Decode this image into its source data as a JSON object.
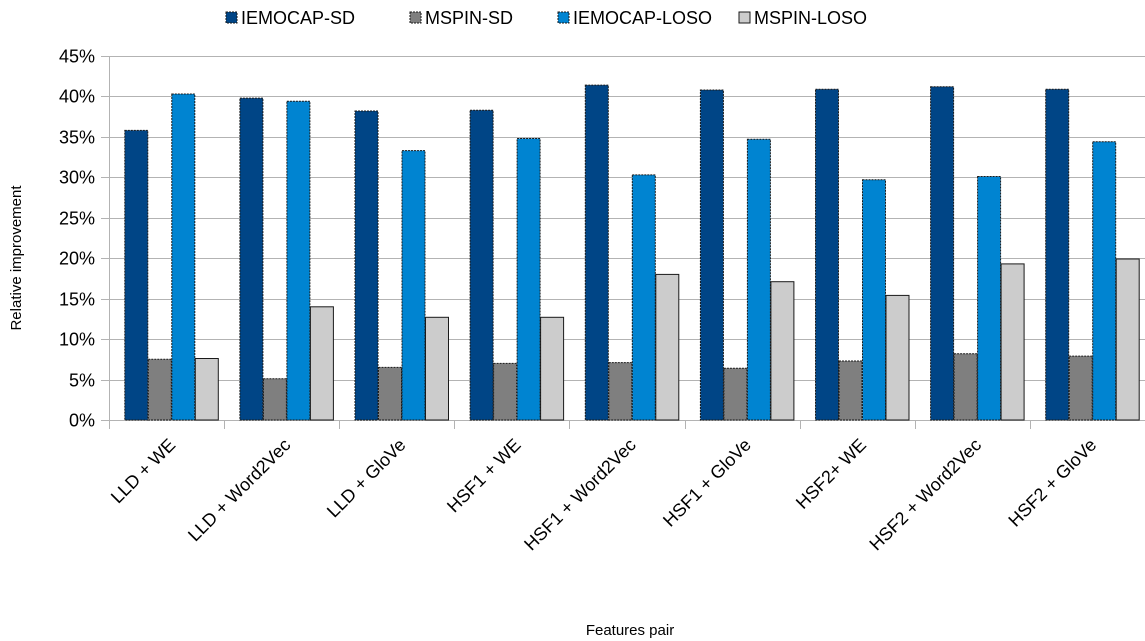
{
  "chart_data": {
    "type": "bar",
    "title": "",
    "xlabel": "Features pair",
    "ylabel": "Relative improvement",
    "ylim": [
      0,
      45
    ],
    "ytick_step": 5,
    "ytick_suffix": "%",
    "grid": true,
    "legend_position": "top",
    "categories": [
      "LLD + WE",
      "LLD + Word2Vec",
      "LLD + GloVe",
      "HSF1 + WE",
      "HSF1 + Word2Vec",
      "HSF1 + GloVe",
      "HSF2+ WE",
      "HSF2 + Word2Vec",
      "HSF2 + GloVe"
    ],
    "series": [
      {
        "name": "IEMOCAP-SD",
        "color": "#004586",
        "values": [
          35.8,
          39.8,
          38.2,
          38.3,
          41.4,
          40.8,
          40.9,
          41.2,
          40.9
        ]
      },
      {
        "name": "MSPIN-SD",
        "color": "#7f7f7f",
        "values": [
          7.5,
          5.1,
          6.5,
          7.0,
          7.1,
          6.4,
          7.3,
          8.2,
          7.9
        ]
      },
      {
        "name": "IEMOCAP-LOSO",
        "color": "#0084d1",
        "values": [
          40.3,
          39.4,
          33.3,
          34.8,
          30.3,
          34.7,
          29.7,
          30.1,
          34.4
        ]
      },
      {
        "name": "MSPIN-LOSO",
        "color": "#cccccc",
        "values": [
          7.6,
          14.0,
          12.7,
          12.7,
          18.0,
          17.1,
          15.4,
          19.3,
          19.9
        ]
      }
    ]
  }
}
